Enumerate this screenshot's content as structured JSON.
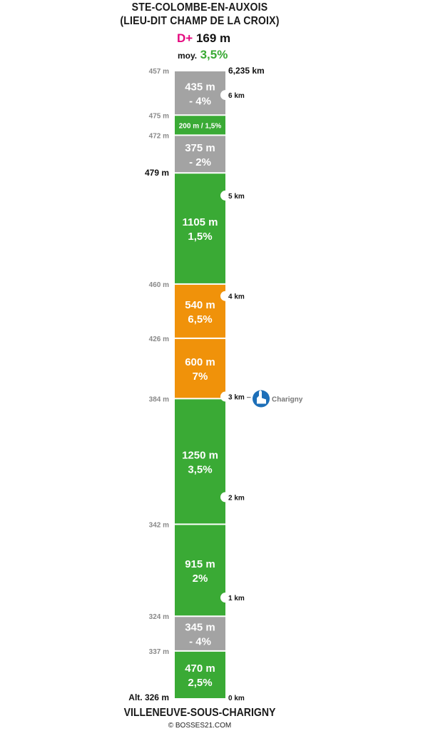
{
  "header": {
    "title_line1": "STE-COLOMBE-EN-AUXOIS",
    "title_line2": "(LIEU-DIT CHAMP DE LA CROIX)",
    "dplus_label": "D+",
    "dplus_value": "169 m",
    "avg_label": "moy.",
    "avg_value": "3,5%"
  },
  "footer": {
    "start_name": "VILLENEUVE-SOUS-CHARIGNY",
    "copyright": "© BOSSES21.COM"
  },
  "colors": {
    "climb": "#3aaa35",
    "steep": "#f0920a",
    "descent": "#a3a3a3",
    "dplus": "#e5097f",
    "avg": "#3aaa35",
    "landmark": "#1d6fb8"
  },
  "chart_data": {
    "type": "bar",
    "orientation": "vertical-stacked-profile",
    "total_distance_label": "6,235 km",
    "total_distance_km": 6.235,
    "segments": [
      {
        "length_m": 470,
        "length_label": "470 m",
        "grade_pct": 2.5,
        "grade_label": "2,5%",
        "kind": "climb"
      },
      {
        "length_m": 345,
        "length_label": "345 m",
        "grade_pct": -4,
        "grade_label": "- 4%",
        "kind": "descent"
      },
      {
        "length_m": 915,
        "length_label": "915 m",
        "grade_pct": 2,
        "grade_label": "2%",
        "kind": "climb"
      },
      {
        "length_m": 1250,
        "length_label": "1250 m",
        "grade_pct": 3.5,
        "grade_label": "3,5%",
        "kind": "climb"
      },
      {
        "length_m": 600,
        "length_label": "600 m",
        "grade_pct": 7,
        "grade_label": "7%",
        "kind": "steep"
      },
      {
        "length_m": 540,
        "length_label": "540 m",
        "grade_pct": 6.5,
        "grade_label": "6,5%",
        "kind": "steep"
      },
      {
        "length_m": 1105,
        "length_label": "1105 m",
        "grade_pct": 1.5,
        "grade_label": "1,5%",
        "kind": "climb"
      },
      {
        "length_m": 375,
        "length_label": "375 m",
        "grade_pct": -2,
        "grade_label": "- 2%",
        "kind": "descent"
      },
      {
        "length_m": 200,
        "length_label": "200 m / 1,5%",
        "grade_pct": 1.5,
        "grade_label": "",
        "kind": "climb",
        "inline": true
      },
      {
        "length_m": 435,
        "length_label": "435 m",
        "grade_pct": -4,
        "grade_label": "- 4%",
        "kind": "descent"
      }
    ],
    "altitudes": [
      {
        "label": "Alt. 326 m",
        "emphasis": true
      },
      {
        "label": "337 m",
        "emphasis": false
      },
      {
        "label": "324 m",
        "emphasis": false
      },
      {
        "label": "342 m",
        "emphasis": false
      },
      {
        "label": "384 m",
        "emphasis": false
      },
      {
        "label": "426 m",
        "emphasis": false
      },
      {
        "label": "460 m",
        "emphasis": false
      },
      {
        "label": "479 m",
        "emphasis": true
      },
      {
        "label": "472 m",
        "emphasis": false
      },
      {
        "label": "475 m",
        "emphasis": false
      },
      {
        "label": "457 m",
        "emphasis": false
      }
    ],
    "km_markers": [
      {
        "km": 0,
        "label": "0 km"
      },
      {
        "km": 1,
        "label": "1 km"
      },
      {
        "km": 2,
        "label": "2 km"
      },
      {
        "km": 3,
        "label": "3 km"
      },
      {
        "km": 4,
        "label": "4 km"
      },
      {
        "km": 5,
        "label": "5 km"
      },
      {
        "km": 6,
        "label": "6 km"
      }
    ],
    "landmarks": [
      {
        "km": 3,
        "dash": "–",
        "name": "Charigny",
        "icon": "church-icon"
      }
    ]
  }
}
